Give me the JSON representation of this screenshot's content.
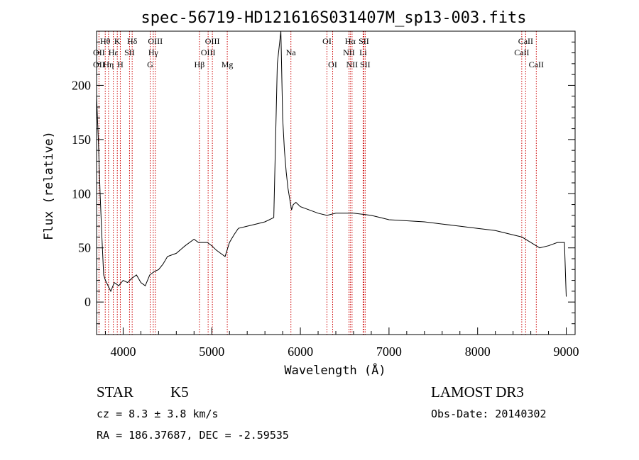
{
  "chart_data": {
    "type": "line",
    "title": "spec-56719-HD121616S031407M_sp13-003.fits",
    "xlabel": "Wavelength (Å)",
    "ylabel": "Flux (relative)",
    "xlim": [
      3700,
      9100
    ],
    "ylim": [
      -30,
      250
    ],
    "xticks": [
      4000,
      5000,
      6000,
      7000,
      8000,
      9000
    ],
    "yticks": [
      0,
      50,
      100,
      150,
      200
    ],
    "series": [
      {
        "name": "flux",
        "x": [
          3700,
          3720,
          3740,
          3760,
          3780,
          3800,
          3830,
          3860,
          3900,
          3950,
          4000,
          4050,
          4100,
          4150,
          4200,
          4250,
          4300,
          4350,
          4400,
          4450,
          4500,
          4600,
          4700,
          4800,
          4850,
          4900,
          4950,
          5000,
          5050,
          5100,
          5150,
          5200,
          5250,
          5300,
          5400,
          5500,
          5600,
          5650,
          5700,
          5740,
          5760,
          5780,
          5800,
          5820,
          5840,
          5860,
          5880,
          5900,
          5920,
          5950,
          6000,
          6100,
          6200,
          6300,
          6400,
          6500,
          6600,
          6700,
          6800,
          6900,
          7000,
          7200,
          7400,
          7600,
          7800,
          8000,
          8200,
          8400,
          8500,
          8600,
          8700,
          8800,
          8900,
          8980,
          9000
        ],
        "y": [
          190,
          150,
          100,
          60,
          25,
          20,
          15,
          10,
          18,
          15,
          20,
          18,
          22,
          25,
          18,
          15,
          25,
          28,
          30,
          35,
          42,
          45,
          52,
          58,
          55,
          55,
          55,
          52,
          48,
          45,
          42,
          55,
          62,
          68,
          70,
          72,
          74,
          76,
          78,
          220,
          235,
          250,
          170,
          140,
          120,
          105,
          95,
          85,
          90,
          92,
          88,
          85,
          82,
          80,
          82,
          82,
          82,
          81,
          80,
          78,
          76,
          75,
          74,
          72,
          70,
          68,
          66,
          62,
          60,
          55,
          50,
          52,
          55,
          55,
          5
        ]
      }
    ],
    "line_marks": [
      {
        "name": "Hθ",
        "x": 3798,
        "row": 1
      },
      {
        "name": "OII",
        "x": 3727,
        "row": 2
      },
      {
        "name": "OII",
        "x": 3727,
        "row": 3
      },
      {
        "name": "K",
        "x": 3934,
        "row": 1
      },
      {
        "name": "Hε",
        "x": 3889,
        "row": 2
      },
      {
        "name": "Hη",
        "x": 3835,
        "row": 3
      },
      {
        "name": "Hδ",
        "x": 4102,
        "row": 1
      },
      {
        "name": "SII",
        "x": 4072,
        "row": 2
      },
      {
        "name": "H",
        "x": 3968,
        "row": 3
      },
      {
        "name": "OIII",
        "x": 4363,
        "row": 1
      },
      {
        "name": "Hγ",
        "x": 4340,
        "row": 2
      },
      {
        "name": "G",
        "x": 4305,
        "row": 3
      },
      {
        "name": "OIII",
        "x": 5007,
        "row": 1
      },
      {
        "name": "OIII",
        "x": 4959,
        "row": 2
      },
      {
        "name": "Hβ",
        "x": 4861,
        "row": 3
      },
      {
        "name": "Mg",
        "x": 5175,
        "row": 3
      },
      {
        "name": "Na",
        "x": 5893,
        "row": 2
      },
      {
        "name": "OI",
        "x": 6300,
        "row": 1
      },
      {
        "name": "OI",
        "x": 6364,
        "row": 3
      },
      {
        "name": "Hα",
        "x": 6563,
        "row": 1
      },
      {
        "name": "SII",
        "x": 6716,
        "row": 1
      },
      {
        "name": "NII",
        "x": 6548,
        "row": 2
      },
      {
        "name": "Li",
        "x": 6708,
        "row": 2
      },
      {
        "name": "NII",
        "x": 6583,
        "row": 3
      },
      {
        "name": "SII",
        "x": 6731,
        "row": 3
      },
      {
        "name": "CaII",
        "x": 8542,
        "row": 1
      },
      {
        "name": "CaII",
        "x": 8498,
        "row": 2
      },
      {
        "name": "CaII",
        "x": 8662,
        "row": 3
      }
    ]
  },
  "info": {
    "object_class": "STAR",
    "subclass": "K5",
    "survey": "LAMOST DR3",
    "cz": "cz = 8.3 ± 3.8 km/s",
    "obs_date": "Obs-Date: 20140302",
    "coords": "RA = 186.37687, DEC =  -2.59535"
  },
  "colors": {
    "line_marker": "#cc0000",
    "spectrum": "#000000",
    "axis": "#000000"
  }
}
